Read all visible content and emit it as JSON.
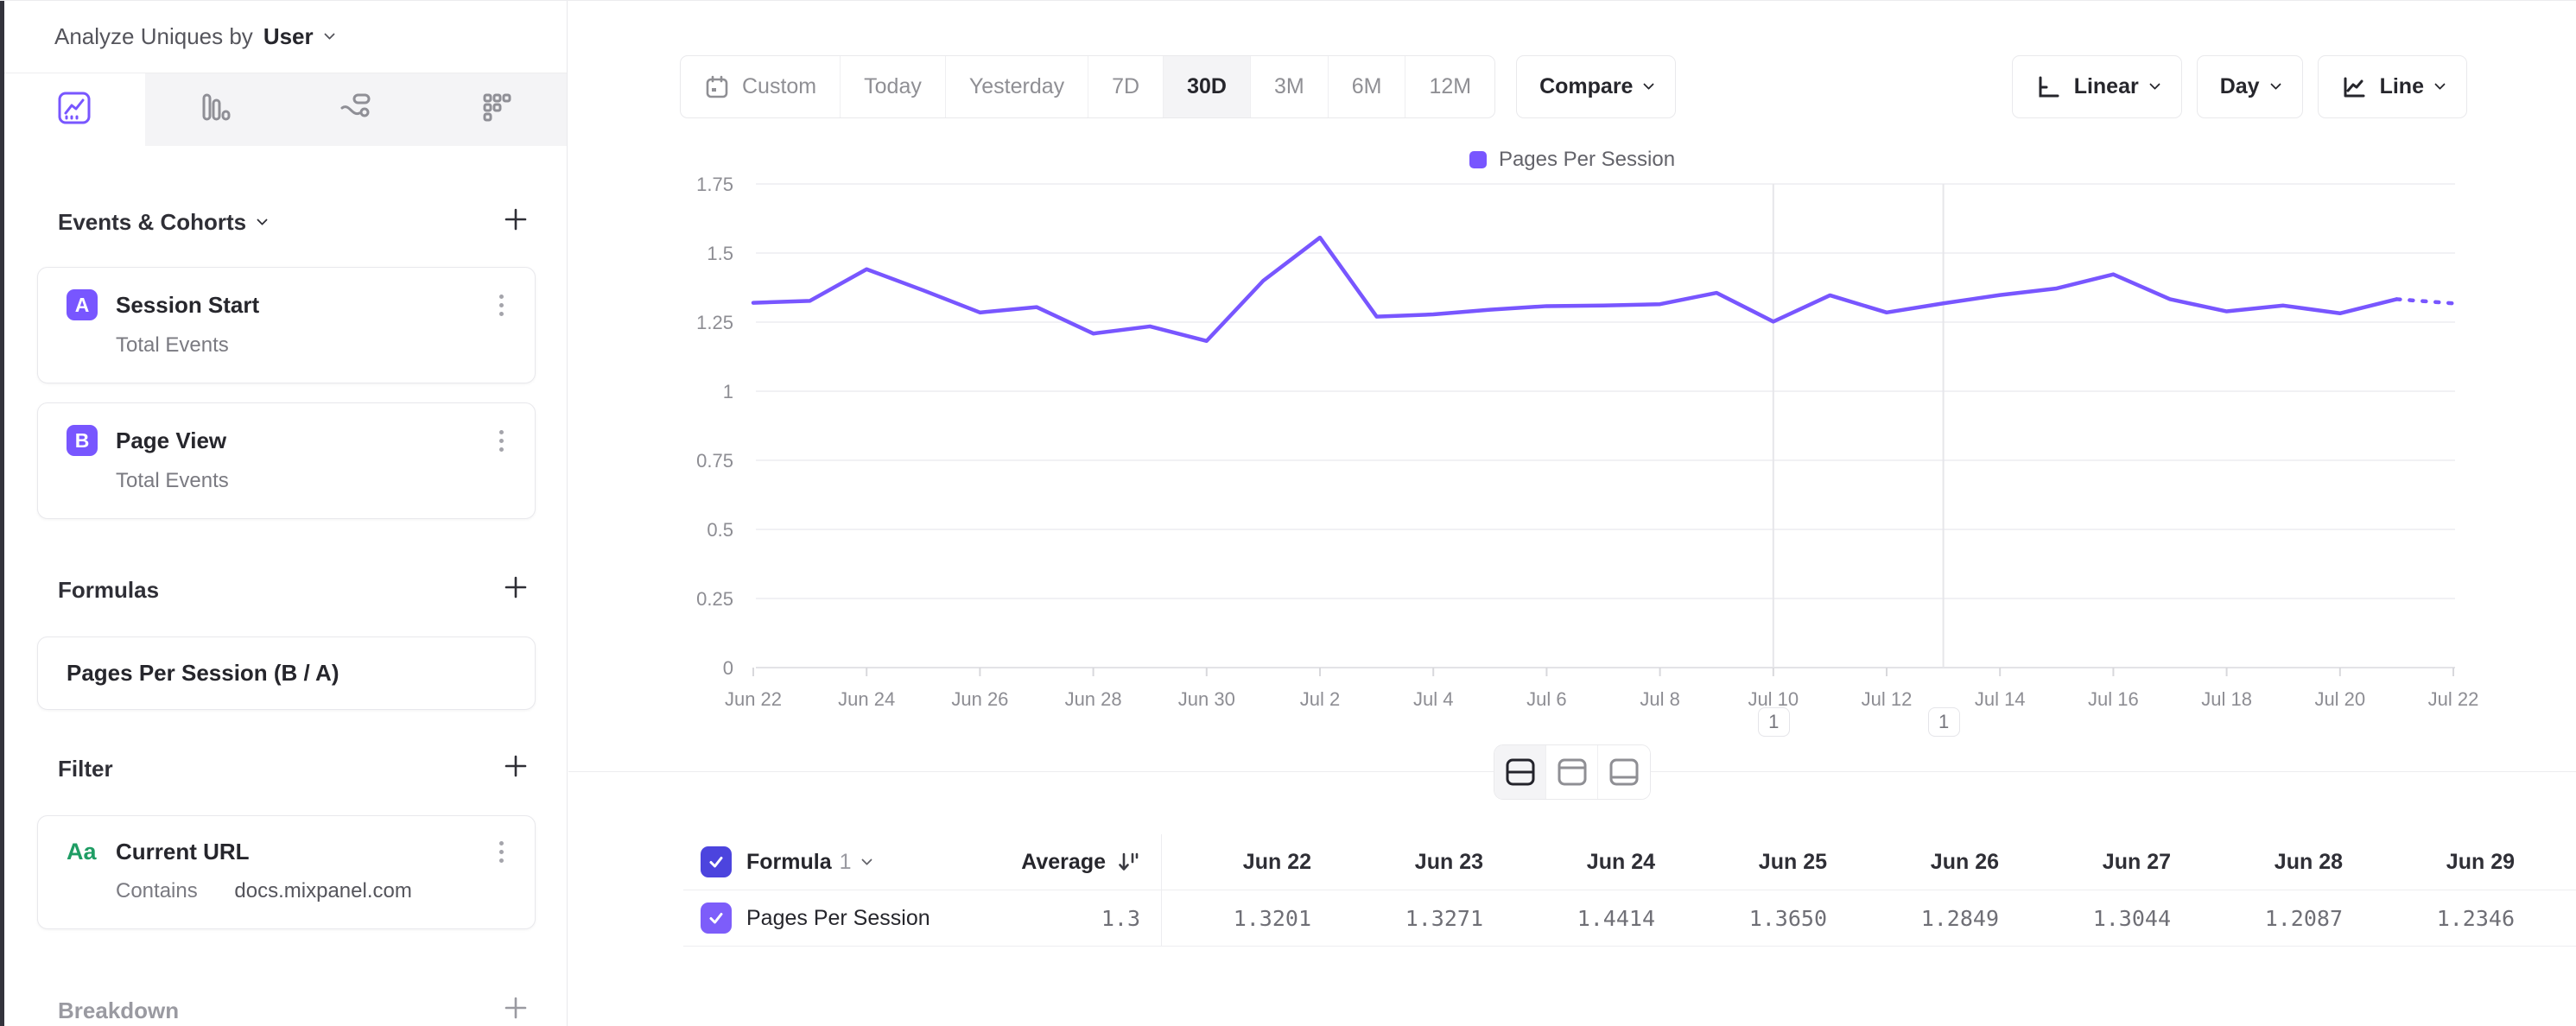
{
  "colors": {
    "accent": "#7856FF",
    "checkbox_dark": "#4c44de",
    "checkbox_light": "#7d5dfa",
    "green_filter": "#1f9d64",
    "grid_line": "#f1f1f4",
    "axis_line": "#e3e3e7",
    "annotation_line": "#e6e6ea",
    "text_dark": "#26262c",
    "text_gray": "#75757c"
  },
  "sidebar": {
    "analyze_label": "Analyze Uniques by",
    "analyze_value": "User",
    "tabs": [
      {
        "name": "insights",
        "active": true
      },
      {
        "name": "funnels",
        "active": false
      },
      {
        "name": "flows",
        "active": false
      },
      {
        "name": "retention",
        "active": false
      }
    ],
    "events_cohorts": {
      "title": "Events & Cohorts",
      "items": [
        {
          "letter": "A",
          "title": "Session Start",
          "subtitle": "Total Events"
        },
        {
          "letter": "B",
          "title": "Page View",
          "subtitle": "Total Events"
        }
      ]
    },
    "formulas": {
      "title": "Formulas",
      "items": [
        {
          "title": "Pages Per Session (B / A)"
        }
      ]
    },
    "filter": {
      "title": "Filter",
      "items": [
        {
          "icon": "Aa",
          "title": "Current URL",
          "operator": "Contains",
          "value": "docs.mixpanel.com"
        }
      ]
    },
    "breakdown": {
      "title": "Breakdown"
    }
  },
  "toolbar": {
    "ranges": [
      "Custom",
      "Today",
      "Yesterday",
      "7D",
      "30D",
      "3M",
      "6M",
      "12M"
    ],
    "active_range": "30D",
    "compare_label": "Compare",
    "scale_label": "Linear",
    "interval_label": "Day",
    "chart_type_label": "Line"
  },
  "chart_data": {
    "type": "line",
    "title": "",
    "x": [
      "Jun 22",
      "Jun 23",
      "Jun 24",
      "Jun 25",
      "Jun 26",
      "Jun 27",
      "Jun 28",
      "Jun 29",
      "Jun 30",
      "Jul 1",
      "Jul 2",
      "Jul 3",
      "Jul 4",
      "Jul 5",
      "Jul 6",
      "Jul 7",
      "Jul 8",
      "Jul 9",
      "Jul 10",
      "Jul 11",
      "Jul 12",
      "Jul 13",
      "Jul 14",
      "Jul 15",
      "Jul 16",
      "Jul 17",
      "Jul 18",
      "Jul 19",
      "Jul 20",
      "Jul 21",
      "Jul 22"
    ],
    "x_label_every": 2,
    "series": [
      {
        "name": "Pages Per Session",
        "color": "#7856FF",
        "values": [
          1.3201,
          1.3271,
          1.4414,
          1.365,
          1.2849,
          1.3044,
          1.2087,
          1.2346,
          1.182,
          1.4,
          1.556,
          1.27,
          1.278,
          1.295,
          1.308,
          1.31,
          1.315,
          1.356,
          1.252,
          1.347,
          1.285,
          1.318,
          1.348,
          1.372,
          1.423,
          1.333,
          1.289,
          1.31,
          1.282,
          1.333,
          1.318
        ]
      }
    ],
    "dashed_from_index": 29,
    "ylim": [
      0,
      1.75
    ],
    "y_ticks": [
      "0",
      "0.25",
      "0.5",
      "0.75",
      "1",
      "1.25",
      "1.5",
      "1.75"
    ],
    "grid": true,
    "legend_position": "top-center",
    "annotations": [
      {
        "x": "Jul 10",
        "index": 18,
        "label": "1"
      },
      {
        "x": "Jul 13",
        "index": 21,
        "label": "1"
      }
    ]
  },
  "table": {
    "header": {
      "name_label": "Formula",
      "name_number": "1",
      "average_label": "Average",
      "date_columns": [
        "Jun 22",
        "Jun 23",
        "Jun 24",
        "Jun 25",
        "Jun 26",
        "Jun 27",
        "Jun 28",
        "Jun 29"
      ]
    },
    "rows": [
      {
        "label": "Pages Per Session",
        "average": "1.3",
        "values": [
          "1.3201",
          "1.3271",
          "1.4414",
          "1.3650",
          "1.2849",
          "1.3044",
          "1.2087",
          "1.2346"
        ]
      }
    ]
  }
}
